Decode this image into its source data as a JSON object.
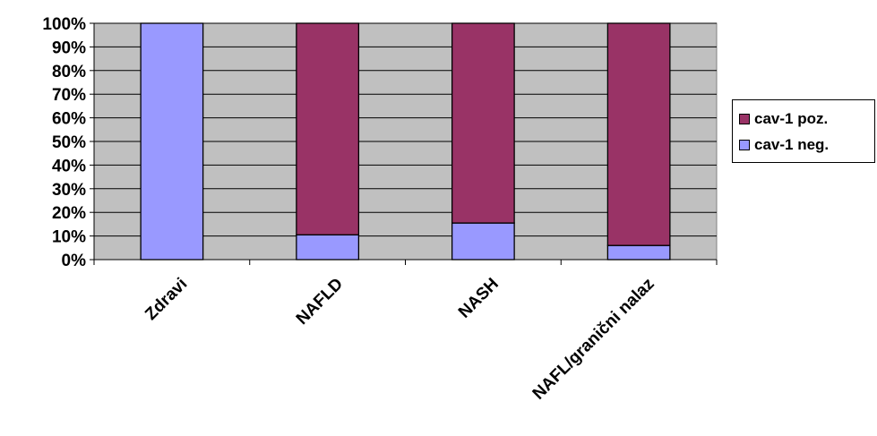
{
  "chart_data": {
    "type": "bar",
    "stacked": true,
    "percent": true,
    "categories": [
      "Zdravi",
      "NAFLD",
      "NASH",
      "NAFL/granični nalaz"
    ],
    "series": [
      {
        "name": "cav-1 neg.",
        "color": "#9999ff",
        "values": [
          100,
          10.5,
          15.5,
          6
        ]
      },
      {
        "name": "cav-1 poz.",
        "color": "#993366",
        "values": [
          0,
          89.5,
          84.5,
          94
        ]
      }
    ],
    "ylim": [
      0,
      100
    ],
    "yticks": [
      "0%",
      "10%",
      "20%",
      "30%",
      "40%",
      "50%",
      "60%",
      "70%",
      "80%",
      "90%",
      "100%"
    ],
    "plot_background": "#c0c0c0",
    "grid": true,
    "legend_position": "right",
    "legend_order": [
      "cav-1 poz.",
      "cav-1 neg."
    ]
  }
}
